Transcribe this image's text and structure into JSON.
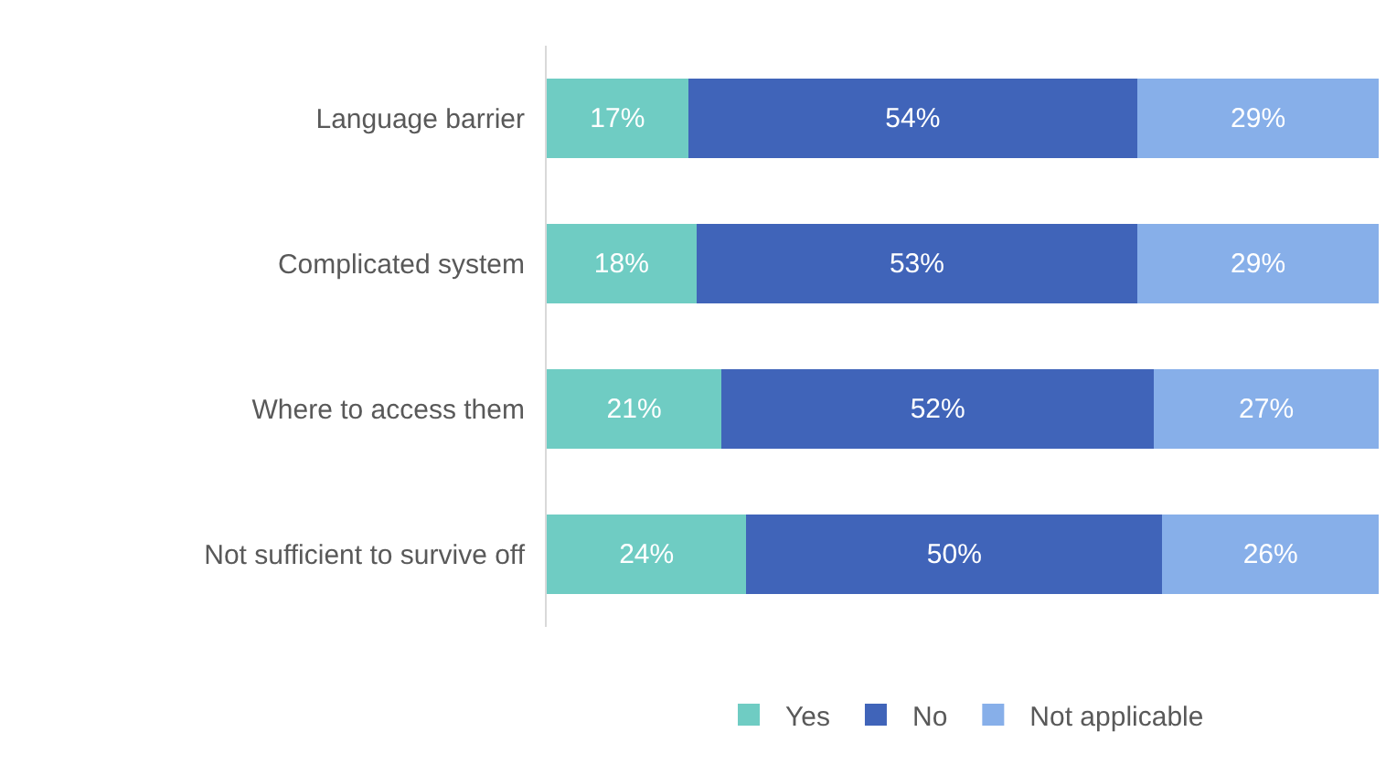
{
  "chart_data": {
    "type": "bar",
    "orientation": "horizontal",
    "stacked": true,
    "categories": [
      "Language barrier",
      "Complicated system",
      "Where to access them",
      "Not sufficient to survive off"
    ],
    "series": [
      {
        "name": "Yes",
        "color": "#6fccc3",
        "values": [
          17,
          18,
          21,
          24
        ],
        "value_labels": [
          "17%",
          "18%",
          "21%",
          "24%"
        ]
      },
      {
        "name": "No",
        "color": "#4064b9",
        "values": [
          54,
          53,
          52,
          50
        ],
        "value_labels": [
          "54%",
          "53%",
          "52%",
          "50%"
        ]
      },
      {
        "name": "Not applicable",
        "color": "#87afe9",
        "values": [
          29,
          29,
          27,
          26
        ],
        "value_labels": [
          "29%",
          "29%",
          "27%",
          "26%"
        ]
      }
    ],
    "xlim": [
      0,
      100
    ],
    "tick_labels": "y",
    "legend": "bottom"
  }
}
